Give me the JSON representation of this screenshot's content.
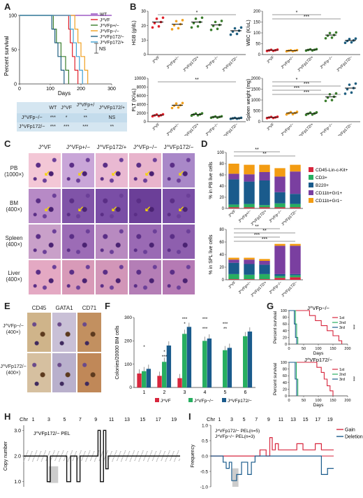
{
  "panels": {
    "A": "A",
    "B": "B",
    "C": "C",
    "D": "D",
    "E": "E",
    "F": "F",
    "G": "G",
    "H": "H",
    "I": "I"
  },
  "colors": {
    "wt": "#8a3ab9",
    "jvf": "#e0202a",
    "jvfp_het": "#3a7d2c",
    "jvfp_ko": "#f0a020",
    "jvfp172_het": "#40a0d0",
    "jvfp172_ko": "#1f5f80",
    "hist_pink": "#e6a8c8",
    "hist_purple": "#7b4aa8"
  },
  "panelA": {
    "legend": [
      "WT",
      "J^VF",
      "J^VFp+/−",
      "J^VFp−/−",
      "J^VFp172/−",
      "J^VFp172/+"
    ],
    "ylabel": "Percent survival",
    "xlabel": "Days",
    "ns": "NS",
    "table": {
      "header": [
        "",
        "WT",
        "J^VF",
        "J^VFp+/−",
        "J^VFp172/+"
      ],
      "rows": [
        [
          "J^VFp−/−",
          "***",
          "*",
          "**",
          "NS"
        ],
        [
          "J^VFp172/−",
          "***",
          "***",
          "***",
          "**"
        ]
      ]
    }
  },
  "chart_data": [
    {
      "type": "line",
      "title": "",
      "xlabel": "Days",
      "ylabel": "Percent survival",
      "xlim": [
        0,
        300
      ],
      "ylim": [
        0,
        100
      ],
      "x_ticks": [
        0,
        100,
        200,
        300
      ],
      "y_ticks": [
        0,
        50,
        100
      ],
      "series": [
        {
          "name": "WT",
          "x": [
            0,
            300
          ],
          "y": [
            100,
            100
          ]
        },
        {
          "name": "J^VF",
          "x": [
            0,
            155,
            160,
            165,
            172,
            180,
            190
          ],
          "y": [
            100,
            100,
            80,
            60,
            40,
            20,
            0
          ]
        },
        {
          "name": "J^VFp+/−",
          "x": [
            0,
            100,
            110,
            120,
            135,
            150,
            160
          ],
          "y": [
            100,
            100,
            80,
            60,
            40,
            20,
            0
          ]
        },
        {
          "name": "J^VFp−/−",
          "x": [
            0,
            170,
            180,
            190,
            200,
            212,
            222
          ],
          "y": [
            100,
            100,
            80,
            60,
            40,
            20,
            0
          ]
        },
        {
          "name": "J^VFp172/−",
          "x": [
            0,
            95,
            105,
            115,
            125,
            135,
            145
          ],
          "y": [
            100,
            100,
            80,
            60,
            40,
            20,
            0
          ]
        },
        {
          "name": "J^VFp172/+",
          "x": [
            0,
            150,
            165,
            175,
            185,
            195,
            205
          ],
          "y": [
            100,
            100,
            80,
            60,
            40,
            20,
            0
          ]
        }
      ]
    },
    {
      "type": "scatter",
      "ylabel": "HGB (g/dL)",
      "ylim": [
        0,
        30
      ],
      "y_ticks": [
        0,
        10,
        20,
        30
      ],
      "categories": [
        "J^VF",
        "J^VFp+/−",
        "J^VFp172/+",
        "J^VFp−/−",
        "J^VFp172/−"
      ],
      "means": [
        22.5,
        21,
        22.5,
        20.5,
        16.5
      ],
      "sig": "*"
    },
    {
      "type": "scatter",
      "ylabel": "WBC (K/uL)",
      "ylim": [
        0,
        200
      ],
      "y_ticks": [
        0,
        50,
        100,
        150,
        200
      ],
      "categories": [
        "J^VF",
        "J^VFp+/−",
        "J^VFp172/+",
        "J^VFp−/−",
        "J^VFp172/−"
      ],
      "means": [
        20,
        18,
        22,
        90,
        65
      ],
      "sig": [
        "*",
        "***"
      ]
    },
    {
      "type": "scatter",
      "ylabel": "PLT (K/uL)",
      "ylim": [
        0,
        10000
      ],
      "y_ticks": [
        0,
        2000,
        4000,
        6000,
        8000,
        10000
      ],
      "categories": [
        "J^VF",
        "J^VFp+/−",
        "J^VFp172/+",
        "J^VFp−/−",
        "J^VFp172/−"
      ],
      "means": [
        1500,
        3800,
        1700,
        1100,
        800
      ],
      "sig": "**"
    },
    {
      "type": "scatter",
      "ylabel": "Spleen weight (mg)",
      "ylim": [
        0,
        2000
      ],
      "y_ticks": [
        0,
        500,
        1000,
        1500,
        2000
      ],
      "categories": [
        "J^VF",
        "J^VFp+/−",
        "J^VFp172/+",
        "J^VFp−/−",
        "J^VFp172/−"
      ],
      "means": [
        200,
        400,
        380,
        1150,
        1550
      ],
      "sig": [
        "*",
        "***",
        "***",
        "***"
      ]
    },
    {
      "type": "bar",
      "stacked": true,
      "ylabel": "% in PB live cells",
      "ylim": [
        0,
        100
      ],
      "y_ticks": [
        0,
        20,
        40,
        60,
        80,
        100
      ],
      "categories": [
        "J^VF",
        "J^VFp+/−",
        "J^VFp172/+",
        "J^VFp−/−",
        "J^VFp172/−"
      ],
      "series": [
        {
          "name": "CD45-Lin-c-Kit+",
          "values": [
            2,
            2,
            2,
            2,
            2
          ]
        },
        {
          "name": "CD3+",
          "values": [
            5,
            6,
            4,
            7,
            6
          ]
        },
        {
          "name": "B220+",
          "values": [
            45,
            40,
            44,
            20,
            18
          ]
        },
        {
          "name": "CD11b+Gr1+",
          "values": [
            10,
            13,
            15,
            28,
            40
          ]
        },
        {
          "name": "CD11b+Gr1−",
          "values": [
            18,
            17,
            13,
            15,
            12
          ]
        }
      ],
      "sig": [
        "**",
        "**"
      ]
    },
    {
      "type": "bar",
      "stacked": true,
      "ylabel": "% in SPL live cells",
      "ylim": [
        0,
        80
      ],
      "y_ticks": [
        0,
        20,
        40,
        60,
        80
      ],
      "categories": [
        "J^VF",
        "J^VFp+/−",
        "J^VFp172/+",
        "J^VFp−/−",
        "J^VFp172/−"
      ],
      "series": [
        {
          "name": "CD45-Lin-c-Kit+",
          "values": [
            1,
            1,
            1,
            3,
            4
          ]
        },
        {
          "name": "CD3+",
          "values": [
            8,
            7,
            8,
            3,
            3
          ]
        },
        {
          "name": "B220+",
          "values": [
            18,
            17,
            15,
            3,
            2
          ]
        },
        {
          "name": "CD11b+Gr1+",
          "values": [
            5,
            7,
            6,
            45,
            45
          ]
        },
        {
          "name": "CD11b+Gr1−",
          "values": [
            3,
            3,
            3,
            3,
            3
          ]
        }
      ],
      "sig": [
        "**",
        "**",
        "***",
        "***"
      ]
    },
    {
      "type": "bar",
      "ylabel": "Colonies/20000 BM cells",
      "ylim": [
        0,
        300
      ],
      "y_ticks": [
        0,
        100,
        200,
        300
      ],
      "categories": [
        "1",
        "2",
        "3",
        "4",
        "5",
        "6"
      ],
      "series": [
        {
          "name": "J^VF",
          "values": [
            60,
            50,
            40,
            0,
            0,
            0
          ]
        },
        {
          "name": "J^VFp−/−",
          "values": [
            70,
            110,
            230,
            200,
            160,
            220
          ]
        },
        {
          "name": "J^VFp172/−",
          "values": [
            80,
            180,
            260,
            210,
            170,
            240
          ]
        }
      ]
    },
    {
      "type": "line",
      "title": "J^VFp−/−",
      "xlabel": "Days",
      "ylabel": "Percent survival",
      "xlim": [
        0,
        200
      ],
      "ylim": [
        0,
        100
      ],
      "x_ticks": [
        0,
        50,
        100,
        150,
        200
      ],
      "y_ticks": [
        0,
        20,
        40,
        60,
        80,
        100
      ],
      "series": [
        {
          "name": "1st",
          "x": [
            0,
            55,
            70,
            90,
            110,
            130,
            150,
            170,
            180
          ],
          "y": [
            100,
            100,
            85,
            70,
            55,
            40,
            25,
            10,
            0
          ]
        },
        {
          "name": "2nd",
          "x": [
            0,
            18,
            22,
            26,
            30
          ],
          "y": [
            100,
            100,
            60,
            20,
            0
          ]
        },
        {
          "name": "3rd",
          "x": [
            0,
            14,
            18,
            22,
            26
          ],
          "y": [
            100,
            100,
            60,
            20,
            0
          ]
        }
      ]
    },
    {
      "type": "line",
      "title": "J^VFp172/−",
      "xlabel": "Days",
      "ylabel": "Percent survival",
      "xlim": [
        0,
        200
      ],
      "ylim": [
        0,
        100
      ],
      "x_ticks": [
        0,
        50,
        100,
        150,
        200
      ],
      "y_ticks": [
        0,
        20,
        40,
        60,
        80,
        100
      ],
      "series": [
        {
          "name": "1st",
          "x": [
            0,
            80,
            95,
            110,
            120,
            130,
            140,
            150
          ],
          "y": [
            100,
            100,
            85,
            70,
            50,
            30,
            15,
            0
          ]
        },
        {
          "name": "2nd",
          "x": [
            0,
            20,
            25,
            30
          ],
          "y": [
            100,
            100,
            50,
            0
          ]
        },
        {
          "name": "3rd",
          "x": [
            0,
            16,
            21,
            26
          ],
          "y": [
            100,
            100,
            50,
            0
          ]
        }
      ]
    },
    {
      "type": "line",
      "title": "J^VFp172/− PEL",
      "ylabel": "Copy number",
      "ylim": [
        0.8,
        3.2
      ],
      "y_ticks": [
        1.0,
        2.0,
        3.0
      ],
      "x_ticks": [
        "1",
        "3",
        "5",
        "7",
        "9",
        "11",
        "13",
        "15",
        "17",
        "19"
      ]
    },
    {
      "type": "line",
      "title": "",
      "ylabel": "Frequency",
      "ylim": [
        -1.0,
        1.0
      ],
      "y_ticks": [
        -1.0,
        -0.5,
        0,
        0.5,
        1.0
      ],
      "x_ticks": [
        "1",
        "3",
        "5",
        "7",
        "9",
        "11",
        "13",
        "15",
        "17",
        "19"
      ],
      "series": [
        {
          "name": "Gain"
        },
        {
          "name": "Deletion"
        }
      ]
    }
  ],
  "panelB": {
    "groups": [
      "J^VF",
      "J^VFp+/−",
      "J^VFp172/+",
      "J^VFp−/−",
      "J^VFp172/−"
    ],
    "hgb_label": "HGB (g/dL)",
    "wbc_label": "WBC (K/uL)",
    "plt_label": "PLT (K/uL)",
    "spl_label": "Spleen weight (mg)"
  },
  "panelC": {
    "cols": [
      "J^VF",
      "J^VFp+/−",
      "J^VFp172/+",
      "J^VFp−/−",
      "J^VFp172/−"
    ],
    "rows": [
      {
        "name": "PB",
        "mag": "(1000×)"
      },
      {
        "name": "BM",
        "mag": "(400×)"
      },
      {
        "name": "Spleen",
        "mag": "(400×)"
      },
      {
        "name": "Liver",
        "mag": "(400×)"
      }
    ]
  },
  "panelD": {
    "legend": [
      "CD45-Lin-c-Kit+",
      "CD3+",
      "B220+",
      "CD11b+Gr1+",
      "CD11b+Gr1−"
    ],
    "legend_colors": [
      "#d7263d",
      "#27ae60",
      "#1a5b8c",
      "#7a3fa0",
      "#f39c12"
    ],
    "pb_ylabel": "% in PB live cells",
    "spl_ylabel": "% in SPL live cells"
  },
  "panelE": {
    "stains": [
      "CD45",
      "GATA1",
      "CD71"
    ],
    "rows": [
      {
        "name": "J^VFp−/−",
        "mag": "(400×)"
      },
      {
        "name": "J^VFp172/−",
        "mag": "(400×)"
      }
    ]
  },
  "panelF": {
    "ylabel": "Colonies/20000 BM cells",
    "legend": [
      "J^VF",
      "J^VFp−/−",
      "J^VFp172/−"
    ],
    "legend_colors": [
      "#d7263d",
      "#27ae60",
      "#1a5b8c"
    ]
  },
  "panelG": {
    "titles": [
      "J^VFp−/−",
      "J^VFp172/−"
    ],
    "legend": [
      "1st",
      "2nd",
      "3rd"
    ],
    "legend_colors": [
      "#d7263d",
      "#27ae60",
      "#1a5b8c"
    ],
    "sig": "***"
  },
  "panelH": {
    "chr_label": "Chr",
    "title": "J^VFp172/− PEL",
    "ylabel": "Copy number"
  },
  "panelI": {
    "chr_label": "Chr",
    "title1": "J^VFp172/− PEL(n=5)",
    "title2": "J^VFp−/− PEL(n=3)",
    "ylabel": "Frequency",
    "legend": [
      "Gain",
      "Deletion"
    ],
    "legend_colors": [
      "#d7263d",
      "#1a5b8c"
    ]
  }
}
